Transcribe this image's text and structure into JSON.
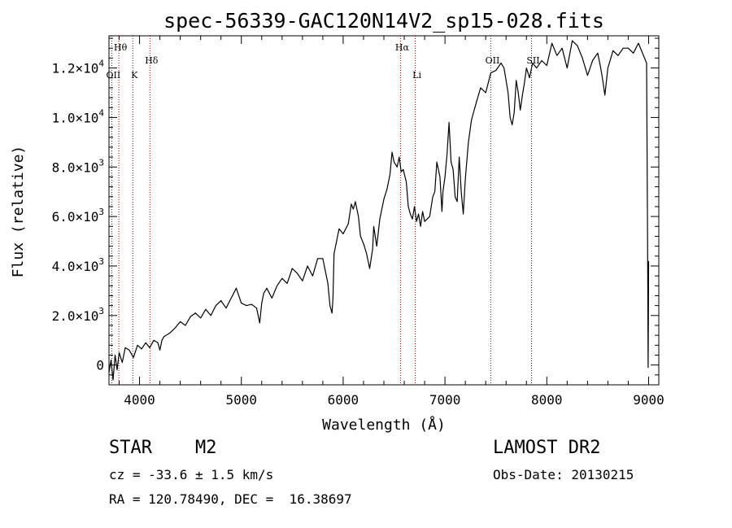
{
  "chart_data": {
    "type": "line",
    "title": "spec-56339-GAC120N14V2_sp15-028.fits",
    "xlabel": "Wavelength (Å)",
    "ylabel": "Flux (relative)",
    "xlim": [
      3700,
      9100
    ],
    "ylim": [
      -800,
      13300
    ],
    "x_ticks": [
      4000,
      5000,
      6000,
      7000,
      8000,
      9000
    ],
    "x_tick_labels": [
      "4000",
      "5000",
      "6000",
      "7000",
      "8000",
      "9000"
    ],
    "y_ticks": [
      0,
      2000,
      4000,
      6000,
      8000,
      10000,
      12000
    ],
    "y_tick_labels": [
      {
        "mant": "0",
        "exp": ""
      },
      {
        "mant": "2.0×10",
        "exp": "3"
      },
      {
        "mant": "4.0×10",
        "exp": "3"
      },
      {
        "mant": "6.0×10",
        "exp": "3"
      },
      {
        "mant": "8.0×10",
        "exp": "3"
      },
      {
        "mant": "1.0×10",
        "exp": "4"
      },
      {
        "mant": "1.2×10",
        "exp": "4"
      }
    ],
    "grid": false,
    "line_color": "#000000",
    "marker_color": "#8b0000",
    "lines": [
      {
        "label": "Hθ",
        "x": 3797,
        "row": 0
      },
      {
        "label": "OII",
        "x": 3727,
        "row": 1
      },
      {
        "label": "K",
        "x": 3934,
        "row": 1
      },
      {
        "label": "Hδ",
        "x": 4102,
        "row": 2
      },
      {
        "label": "Hα",
        "x": 6563,
        "row": 0
      },
      {
        "label": "Li",
        "x": 6708,
        "row": 1
      },
      {
        "label": "OII",
        "x": 7450,
        "row": 2
      },
      {
        "label": "SII",
        "x": 7850,
        "row": 2
      }
    ],
    "series": [
      {
        "x": [
          3700,
          3720,
          3740,
          3760,
          3780,
          3800,
          3830,
          3860,
          3900,
          3940,
          3980,
          4020,
          4060,
          4100,
          4140,
          4180,
          4200,
          4220,
          4240,
          4300,
          4350,
          4400,
          4450,
          4500,
          4550,
          4600,
          4650,
          4700,
          4750,
          4800,
          4850,
          4900,
          4950,
          5000,
          5050,
          5100,
          5150,
          5180,
          5200,
          5220,
          5250,
          5300,
          5350,
          5400,
          5450,
          5500,
          5550,
          5600,
          5650,
          5700,
          5750,
          5800,
          5850,
          5870,
          5890,
          5900,
          5910,
          5930,
          5960,
          6000,
          6050,
          6080,
          6100,
          6120,
          6150,
          6170,
          6200,
          6230,
          6260,
          6290,
          6300,
          6330,
          6360,
          6400,
          6430,
          6460,
          6480,
          6500,
          6530,
          6550,
          6570,
          6590,
          6620,
          6640,
          6660,
          6680,
          6700,
          6720,
          6740,
          6760,
          6780,
          6800,
          6850,
          6880,
          6900,
          6920,
          6950,
          6970,
          6980,
          7000,
          7020,
          7040,
          7060,
          7080,
          7100,
          7120,
          7140,
          7160,
          7180,
          7200,
          7230,
          7260,
          7300,
          7350,
          7400,
          7450,
          7500,
          7550,
          7580,
          7600,
          7620,
          7640,
          7660,
          7680,
          7700,
          7720,
          7740,
          7760,
          7780,
          7800,
          7830,
          7860,
          7900,
          7950,
          8000,
          8050,
          8100,
          8150,
          8200,
          8250,
          8300,
          8350,
          8400,
          8450,
          8500,
          8530,
          8550,
          8570,
          8600,
          8650,
          8700,
          8750,
          8800,
          8850,
          8900,
          8950,
          8980,
          8990,
          8995,
          9000
        ],
        "y": [
          -300,
          200,
          -600,
          400,
          -200,
          500,
          100,
          700,
          600,
          300,
          800,
          650,
          900,
          700,
          1000,
          900,
          600,
          1000,
          1150,
          1300,
          1500,
          1750,
          1600,
          1950,
          2100,
          1900,
          2250,
          2000,
          2400,
          2600,
          2300,
          2700,
          3100,
          2500,
          2400,
          2450,
          2300,
          1700,
          2500,
          2900,
          3100,
          2700,
          3200,
          3500,
          3300,
          3900,
          3700,
          3400,
          4000,
          3600,
          4300,
          4300,
          3300,
          2400,
          2100,
          2700,
          4500,
          4900,
          5500,
          5300,
          5700,
          6500,
          6300,
          6600,
          6000,
          5200,
          4900,
          4500,
          3900,
          4700,
          5600,
          4800,
          5900,
          6700,
          7100,
          7700,
          8600,
          8200,
          8000,
          8400,
          7800,
          7900,
          7400,
          6400,
          6100,
          5900,
          6400,
          5800,
          6100,
          5600,
          6200,
          5800,
          6000,
          6800,
          7000,
          8200,
          7600,
          6200,
          7000,
          7600,
          8500,
          9800,
          8200,
          7900,
          6800,
          6600,
          8400,
          7000,
          6100,
          7500,
          9000,
          9900,
          10500,
          11200,
          11000,
          11800,
          11900,
          12200,
          12000,
          11500,
          11000,
          10000,
          9700,
          10200,
          11500,
          11000,
          10300,
          10900,
          11400,
          12000,
          11600,
          12200,
          12000,
          12300,
          12100,
          13000,
          12500,
          12800,
          12000,
          13100,
          12900,
          12400,
          11700,
          12300,
          12600,
          12000,
          11500,
          10900,
          12000,
          12700,
          12500,
          12800,
          12800,
          12600,
          13000,
          12500,
          12200,
          5000,
          -100,
          4200
        ]
      }
    ]
  },
  "footer": {
    "object_type": "STAR",
    "subclass": "M2",
    "survey": "LAMOST DR2",
    "cz": "cz = -33.6 ± 1.5 km/s",
    "obs_date": "Obs-Date: 20130215",
    "coords": "RA = 120.78490, DEC =  16.38697"
  }
}
